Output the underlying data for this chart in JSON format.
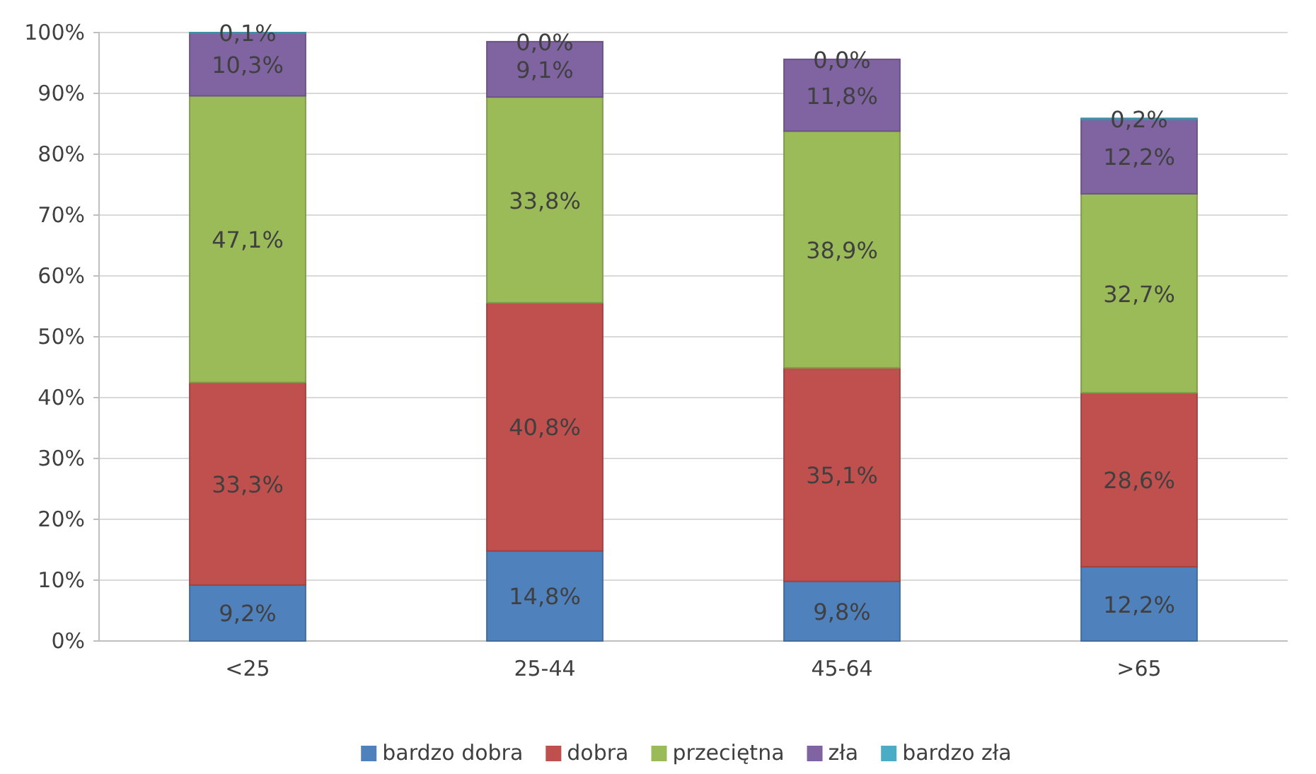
{
  "chart_data": {
    "type": "bar",
    "stacked": true,
    "categories": [
      "<25",
      "25-44",
      "45-64",
      ">65"
    ],
    "series": [
      {
        "name": "bardzo dobra",
        "color": "#4f81bd",
        "values": [
          9.2,
          14.8,
          9.8,
          12.2
        ],
        "value_labels": [
          "9,2%",
          "14,8%",
          "9,8%",
          "12,2%"
        ]
      },
      {
        "name": "dobra",
        "color": "#c0504d",
        "values": [
          33.3,
          40.8,
          35.1,
          28.6
        ],
        "value_labels": [
          "33,3%",
          "40,8%",
          "35,1%",
          "28,6%"
        ]
      },
      {
        "name": "przeciętna",
        "color": "#9bbb59",
        "values": [
          47.1,
          33.8,
          38.9,
          32.7
        ],
        "value_labels": [
          "47,1%",
          "33,8%",
          "38,9%",
          "32,7%"
        ]
      },
      {
        "name": "zła",
        "color": "#8064a2",
        "values": [
          10.3,
          9.1,
          11.8,
          12.2
        ],
        "value_labels": [
          "10,3%",
          "9,1%",
          "11,8%",
          "12,2%"
        ]
      },
      {
        "name": "bardzo zła",
        "color": "#4bacc6",
        "values": [
          0.1,
          0.0,
          0.0,
          0.2
        ],
        "value_labels": [
          "0,1%",
          "0,0%",
          "0,0%",
          "0,2%"
        ]
      }
    ],
    "ylim": [
      0,
      100
    ],
    "yticks": [
      {
        "value": 0,
        "label": "0%"
      },
      {
        "value": 10,
        "label": "10%"
      },
      {
        "value": 20,
        "label": "20%"
      },
      {
        "value": 30,
        "label": "30%"
      },
      {
        "value": 40,
        "label": "40%"
      },
      {
        "value": 50,
        "label": "50%"
      },
      {
        "value": 60,
        "label": "60%"
      },
      {
        "value": 70,
        "label": "70%"
      },
      {
        "value": 80,
        "label": "80%"
      },
      {
        "value": 90,
        "label": "90%"
      },
      {
        "value": 100,
        "label": "100%"
      }
    ],
    "grid": "y",
    "legend": "bottom"
  }
}
